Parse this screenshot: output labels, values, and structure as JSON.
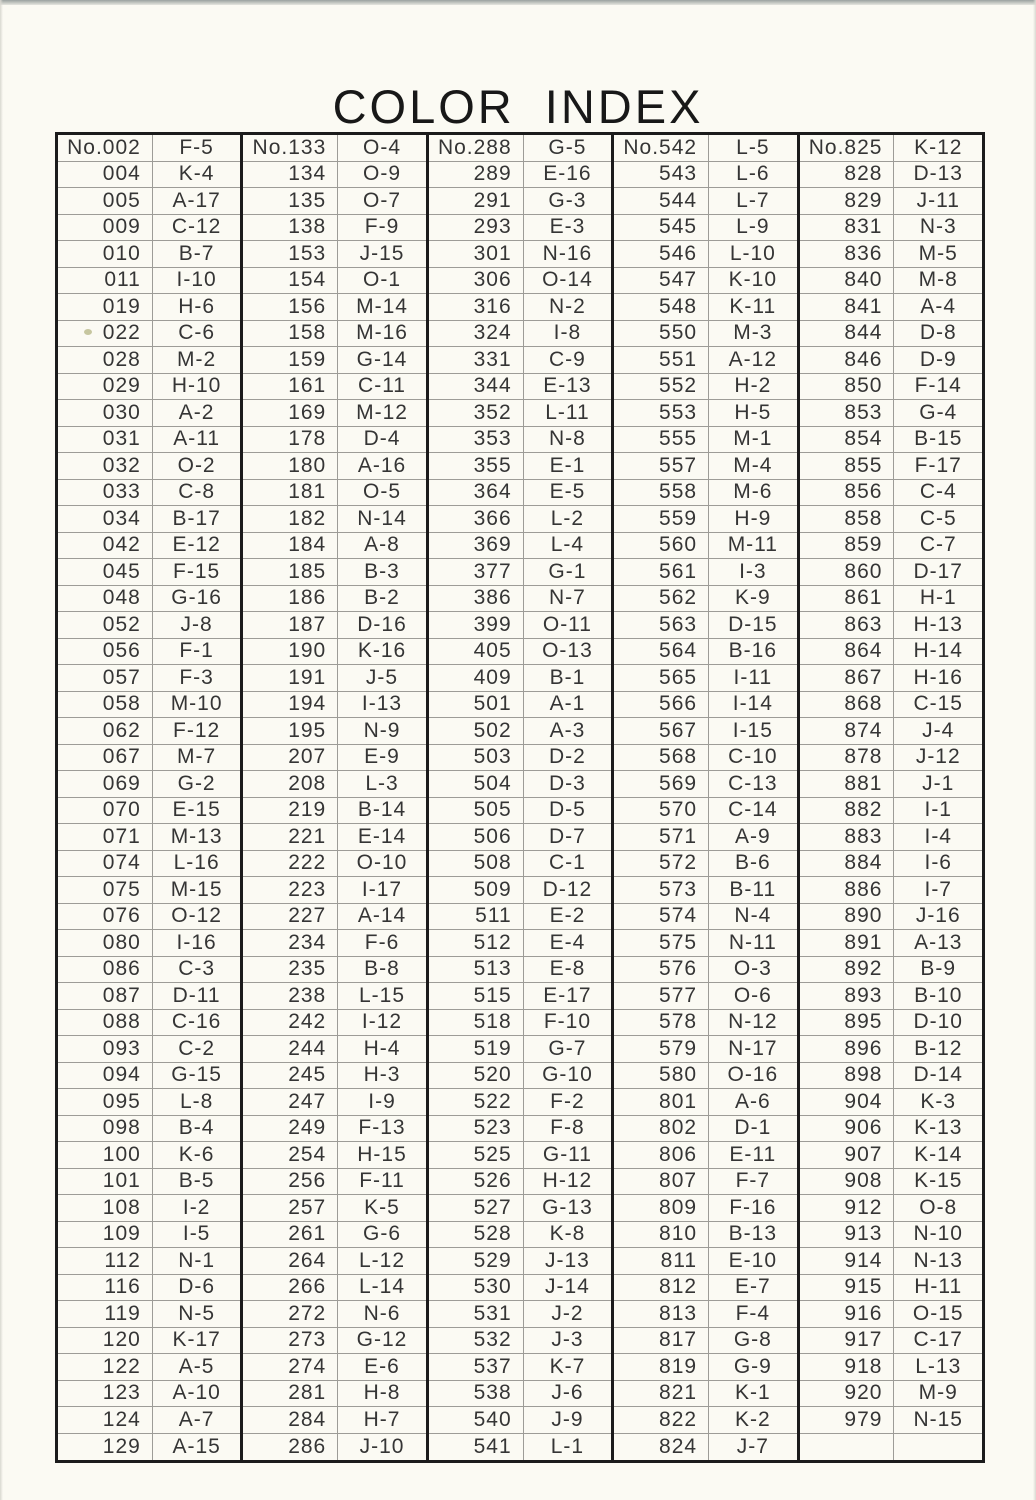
{
  "page": {
    "title": "COLOR INDEX"
  },
  "table": {
    "columns": [
      {
        "rows": [
          {
            "no": "No.002",
            "code": "F-5"
          },
          {
            "no": "004",
            "code": "K-4"
          },
          {
            "no": "005",
            "code": "A-17"
          },
          {
            "no": "009",
            "code": "C-12"
          },
          {
            "no": "010",
            "code": "B-7"
          },
          {
            "no": "011",
            "code": "I-10"
          },
          {
            "no": "019",
            "code": "H-6"
          },
          {
            "no": "022",
            "code": "C-6"
          },
          {
            "no": "028",
            "code": "M-2"
          },
          {
            "no": "029",
            "code": "H-10"
          },
          {
            "no": "030",
            "code": "A-2"
          },
          {
            "no": "031",
            "code": "A-11"
          },
          {
            "no": "032",
            "code": "O-2"
          },
          {
            "no": "033",
            "code": "C-8"
          },
          {
            "no": "034",
            "code": "B-17"
          },
          {
            "no": "042",
            "code": "E-12"
          },
          {
            "no": "045",
            "code": "F-15"
          },
          {
            "no": "048",
            "code": "G-16"
          },
          {
            "no": "052",
            "code": "J-8"
          },
          {
            "no": "056",
            "code": "F-1"
          },
          {
            "no": "057",
            "code": "F-3"
          },
          {
            "no": "058",
            "code": "M-10"
          },
          {
            "no": "062",
            "code": "F-12"
          },
          {
            "no": "067",
            "code": "M-7"
          },
          {
            "no": "069",
            "code": "G-2"
          },
          {
            "no": "070",
            "code": "E-15"
          },
          {
            "no": "071",
            "code": "M-13"
          },
          {
            "no": "074",
            "code": "L-16"
          },
          {
            "no": "075",
            "code": "M-15"
          },
          {
            "no": "076",
            "code": "O-12"
          },
          {
            "no": "080",
            "code": "I-16"
          },
          {
            "no": "086",
            "code": "C-3"
          },
          {
            "no": "087",
            "code": "D-11"
          },
          {
            "no": "088",
            "code": "C-16"
          },
          {
            "no": "093",
            "code": "C-2"
          },
          {
            "no": "094",
            "code": "G-15"
          },
          {
            "no": "095",
            "code": "L-8"
          },
          {
            "no": "098",
            "code": "B-4"
          },
          {
            "no": "100",
            "code": "K-6"
          },
          {
            "no": "101",
            "code": "B-5"
          },
          {
            "no": "108",
            "code": "I-2"
          },
          {
            "no": "109",
            "code": "I-5"
          },
          {
            "no": "112",
            "code": "N-1"
          },
          {
            "no": "116",
            "code": "D-6"
          },
          {
            "no": "119",
            "code": "N-5"
          },
          {
            "no": "120",
            "code": "K-17"
          },
          {
            "no": "122",
            "code": "A-5"
          },
          {
            "no": "123",
            "code": "A-10"
          },
          {
            "no": "124",
            "code": "A-7"
          },
          {
            "no": "129",
            "code": "A-15"
          }
        ]
      },
      {
        "rows": [
          {
            "no": "No.133",
            "code": "O-4"
          },
          {
            "no": "134",
            "code": "O-9"
          },
          {
            "no": "135",
            "code": "O-7"
          },
          {
            "no": "138",
            "code": "F-9"
          },
          {
            "no": "153",
            "code": "J-15"
          },
          {
            "no": "154",
            "code": "O-1"
          },
          {
            "no": "156",
            "code": "M-14"
          },
          {
            "no": "158",
            "code": "M-16"
          },
          {
            "no": "159",
            "code": "G-14"
          },
          {
            "no": "161",
            "code": "C-11"
          },
          {
            "no": "169",
            "code": "M-12"
          },
          {
            "no": "178",
            "code": "D-4"
          },
          {
            "no": "180",
            "code": "A-16"
          },
          {
            "no": "181",
            "code": "O-5"
          },
          {
            "no": "182",
            "code": "N-14"
          },
          {
            "no": "184",
            "code": "A-8"
          },
          {
            "no": "185",
            "code": "B-3"
          },
          {
            "no": "186",
            "code": "B-2"
          },
          {
            "no": "187",
            "code": "D-16"
          },
          {
            "no": "190",
            "code": "K-16"
          },
          {
            "no": "191",
            "code": "J-5"
          },
          {
            "no": "194",
            "code": "I-13"
          },
          {
            "no": "195",
            "code": "N-9"
          },
          {
            "no": "207",
            "code": "E-9"
          },
          {
            "no": "208",
            "code": "L-3"
          },
          {
            "no": "219",
            "code": "B-14"
          },
          {
            "no": "221",
            "code": "E-14"
          },
          {
            "no": "222",
            "code": "O-10"
          },
          {
            "no": "223",
            "code": "I-17"
          },
          {
            "no": "227",
            "code": "A-14"
          },
          {
            "no": "234",
            "code": "F-6"
          },
          {
            "no": "235",
            "code": "B-8"
          },
          {
            "no": "238",
            "code": "L-15"
          },
          {
            "no": "242",
            "code": "I-12"
          },
          {
            "no": "244",
            "code": "H-4"
          },
          {
            "no": "245",
            "code": "H-3"
          },
          {
            "no": "247",
            "code": "I-9"
          },
          {
            "no": "249",
            "code": "F-13"
          },
          {
            "no": "254",
            "code": "H-15"
          },
          {
            "no": "256",
            "code": "F-11"
          },
          {
            "no": "257",
            "code": "K-5"
          },
          {
            "no": "261",
            "code": "G-6"
          },
          {
            "no": "264",
            "code": "L-12"
          },
          {
            "no": "266",
            "code": "L-14"
          },
          {
            "no": "272",
            "code": "N-6"
          },
          {
            "no": "273",
            "code": "G-12"
          },
          {
            "no": "274",
            "code": "E-6"
          },
          {
            "no": "281",
            "code": "H-8"
          },
          {
            "no": "284",
            "code": "H-7"
          },
          {
            "no": "286",
            "code": "J-10"
          }
        ]
      },
      {
        "rows": [
          {
            "no": "No.288",
            "code": "G-5"
          },
          {
            "no": "289",
            "code": "E-16"
          },
          {
            "no": "291",
            "code": "G-3"
          },
          {
            "no": "293",
            "code": "E-3"
          },
          {
            "no": "301",
            "code": "N-16"
          },
          {
            "no": "306",
            "code": "O-14"
          },
          {
            "no": "316",
            "code": "N-2"
          },
          {
            "no": "324",
            "code": "I-8"
          },
          {
            "no": "331",
            "code": "C-9"
          },
          {
            "no": "344",
            "code": "E-13"
          },
          {
            "no": "352",
            "code": "L-11"
          },
          {
            "no": "353",
            "code": "N-8"
          },
          {
            "no": "355",
            "code": "E-1"
          },
          {
            "no": "364",
            "code": "E-5"
          },
          {
            "no": "366",
            "code": "L-2"
          },
          {
            "no": "369",
            "code": "L-4"
          },
          {
            "no": "377",
            "code": "G-1"
          },
          {
            "no": "386",
            "code": "N-7"
          },
          {
            "no": "399",
            "code": "O-11"
          },
          {
            "no": "405",
            "code": "O-13"
          },
          {
            "no": "409",
            "code": "B-1"
          },
          {
            "no": "501",
            "code": "A-1"
          },
          {
            "no": "502",
            "code": "A-3"
          },
          {
            "no": "503",
            "code": "D-2"
          },
          {
            "no": "504",
            "code": "D-3"
          },
          {
            "no": "505",
            "code": "D-5"
          },
          {
            "no": "506",
            "code": "D-7"
          },
          {
            "no": "508",
            "code": "C-1"
          },
          {
            "no": "509",
            "code": "D-12"
          },
          {
            "no": "511",
            "code": "E-2"
          },
          {
            "no": "512",
            "code": "E-4"
          },
          {
            "no": "513",
            "code": "E-8"
          },
          {
            "no": "515",
            "code": "E-17"
          },
          {
            "no": "518",
            "code": "F-10"
          },
          {
            "no": "519",
            "code": "G-7"
          },
          {
            "no": "520",
            "code": "G-10"
          },
          {
            "no": "522",
            "code": "F-2"
          },
          {
            "no": "523",
            "code": "F-8"
          },
          {
            "no": "525",
            "code": "G-11"
          },
          {
            "no": "526",
            "code": "H-12"
          },
          {
            "no": "527",
            "code": "G-13"
          },
          {
            "no": "528",
            "code": "K-8"
          },
          {
            "no": "529",
            "code": "J-13"
          },
          {
            "no": "530",
            "code": "J-14"
          },
          {
            "no": "531",
            "code": "J-2"
          },
          {
            "no": "532",
            "code": "J-3"
          },
          {
            "no": "537",
            "code": "K-7"
          },
          {
            "no": "538",
            "code": "J-6"
          },
          {
            "no": "540",
            "code": "J-9"
          },
          {
            "no": "541",
            "code": "L-1"
          }
        ]
      },
      {
        "rows": [
          {
            "no": "No.542",
            "code": "L-5"
          },
          {
            "no": "543",
            "code": "L-6"
          },
          {
            "no": "544",
            "code": "L-7"
          },
          {
            "no": "545",
            "code": "L-9"
          },
          {
            "no": "546",
            "code": "L-10"
          },
          {
            "no": "547",
            "code": "K-10"
          },
          {
            "no": "548",
            "code": "K-11"
          },
          {
            "no": "550",
            "code": "M-3"
          },
          {
            "no": "551",
            "code": "A-12"
          },
          {
            "no": "552",
            "code": "H-2"
          },
          {
            "no": "553",
            "code": "H-5"
          },
          {
            "no": "555",
            "code": "M-1"
          },
          {
            "no": "557",
            "code": "M-4"
          },
          {
            "no": "558",
            "code": "M-6"
          },
          {
            "no": "559",
            "code": "H-9"
          },
          {
            "no": "560",
            "code": "M-11"
          },
          {
            "no": "561",
            "code": "I-3"
          },
          {
            "no": "562",
            "code": "K-9"
          },
          {
            "no": "563",
            "code": "D-15"
          },
          {
            "no": "564",
            "code": "B-16"
          },
          {
            "no": "565",
            "code": "I-11"
          },
          {
            "no": "566",
            "code": "I-14"
          },
          {
            "no": "567",
            "code": "I-15"
          },
          {
            "no": "568",
            "code": "C-10"
          },
          {
            "no": "569",
            "code": "C-13"
          },
          {
            "no": "570",
            "code": "C-14"
          },
          {
            "no": "571",
            "code": "A-9"
          },
          {
            "no": "572",
            "code": "B-6"
          },
          {
            "no": "573",
            "code": "B-11"
          },
          {
            "no": "574",
            "code": "N-4"
          },
          {
            "no": "575",
            "code": "N-11"
          },
          {
            "no": "576",
            "code": "O-3"
          },
          {
            "no": "577",
            "code": "O-6"
          },
          {
            "no": "578",
            "code": "N-12"
          },
          {
            "no": "579",
            "code": "N-17"
          },
          {
            "no": "580",
            "code": "O-16"
          },
          {
            "no": "801",
            "code": "A-6"
          },
          {
            "no": "802",
            "code": "D-1"
          },
          {
            "no": "806",
            "code": "E-11"
          },
          {
            "no": "807",
            "code": "F-7"
          },
          {
            "no": "809",
            "code": "F-16"
          },
          {
            "no": "810",
            "code": "B-13"
          },
          {
            "no": "811",
            "code": "E-10"
          },
          {
            "no": "812",
            "code": "E-7"
          },
          {
            "no": "813",
            "code": "F-4"
          },
          {
            "no": "817",
            "code": "G-8"
          },
          {
            "no": "819",
            "code": "G-9"
          },
          {
            "no": "821",
            "code": "K-1"
          },
          {
            "no": "822",
            "code": "K-2"
          },
          {
            "no": "824",
            "code": "J-7"
          }
        ]
      },
      {
        "rows": [
          {
            "no": "No.825",
            "code": "K-12"
          },
          {
            "no": "828",
            "code": "D-13"
          },
          {
            "no": "829",
            "code": "J-11"
          },
          {
            "no": "831",
            "code": "N-3"
          },
          {
            "no": "836",
            "code": "M-5"
          },
          {
            "no": "840",
            "code": "M-8"
          },
          {
            "no": "841",
            "code": "A-4"
          },
          {
            "no": "844",
            "code": "D-8"
          },
          {
            "no": "846",
            "code": "D-9"
          },
          {
            "no": "850",
            "code": "F-14"
          },
          {
            "no": "853",
            "code": "G-4"
          },
          {
            "no": "854",
            "code": "B-15"
          },
          {
            "no": "855",
            "code": "F-17"
          },
          {
            "no": "856",
            "code": "C-4"
          },
          {
            "no": "858",
            "code": "C-5"
          },
          {
            "no": "859",
            "code": "C-7"
          },
          {
            "no": "860",
            "code": "D-17"
          },
          {
            "no": "861",
            "code": "H-1"
          },
          {
            "no": "863",
            "code": "H-13"
          },
          {
            "no": "864",
            "code": "H-14"
          },
          {
            "no": "867",
            "code": "H-16"
          },
          {
            "no": "868",
            "code": "C-15"
          },
          {
            "no": "874",
            "code": "J-4"
          },
          {
            "no": "878",
            "code": "J-12"
          },
          {
            "no": "881",
            "code": "J-1"
          },
          {
            "no": "882",
            "code": "I-1"
          },
          {
            "no": "883",
            "code": "I-4"
          },
          {
            "no": "884",
            "code": "I-6"
          },
          {
            "no": "886",
            "code": "I-7"
          },
          {
            "no": "890",
            "code": "J-16"
          },
          {
            "no": "891",
            "code": "A-13"
          },
          {
            "no": "892",
            "code": "B-9"
          },
          {
            "no": "893",
            "code": "B-10"
          },
          {
            "no": "895",
            "code": "D-10"
          },
          {
            "no": "896",
            "code": "B-12"
          },
          {
            "no": "898",
            "code": "D-14"
          },
          {
            "no": "904",
            "code": "K-3"
          },
          {
            "no": "906",
            "code": "K-13"
          },
          {
            "no": "907",
            "code": "K-14"
          },
          {
            "no": "908",
            "code": "K-15"
          },
          {
            "no": "912",
            "code": "O-8"
          },
          {
            "no": "913",
            "code": "N-10"
          },
          {
            "no": "914",
            "code": "N-13"
          },
          {
            "no": "915",
            "code": "H-11"
          },
          {
            "no": "916",
            "code": "O-15"
          },
          {
            "no": "917",
            "code": "C-17"
          },
          {
            "no": "918",
            "code": "L-13"
          },
          {
            "no": "920",
            "code": "M-9"
          },
          {
            "no": "979",
            "code": "N-15"
          },
          {
            "no": "",
            "code": ""
          }
        ]
      }
    ]
  }
}
